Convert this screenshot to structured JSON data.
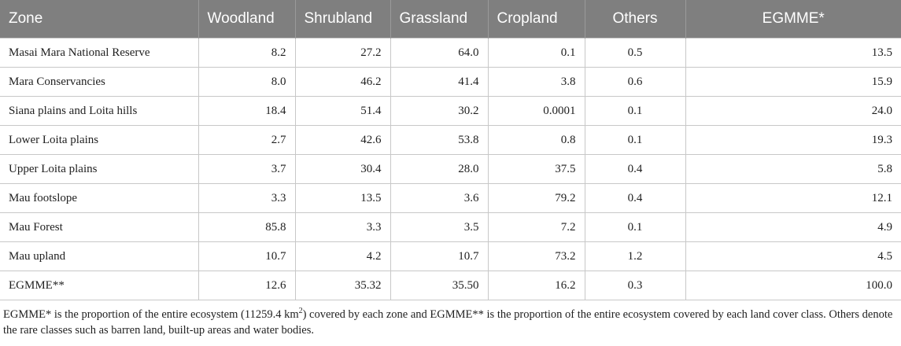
{
  "table": {
    "headers": [
      "Zone",
      "Woodland",
      "Shrubland",
      "Grassland",
      "Cropland",
      "Others",
      "EGMME*"
    ],
    "rows": [
      [
        "Masai Mara National Reserve",
        "8.2",
        "27.2",
        "64.0",
        "0.1",
        "0.5",
        "13.5"
      ],
      [
        "Mara Conservancies",
        "8.0",
        "46.2",
        "41.4",
        "3.8",
        "0.6",
        "15.9"
      ],
      [
        "Siana plains and Loita hills",
        "18.4",
        "51.4",
        "30.2",
        "0.0001",
        "0.1",
        "24.0"
      ],
      [
        "Lower Loita plains",
        "2.7",
        "42.6",
        "53.8",
        "0.8",
        "0.1",
        "19.3"
      ],
      [
        "Upper Loita plains",
        "3.7",
        "30.4",
        "28.0",
        "37.5",
        "0.4",
        "5.8"
      ],
      [
        "Mau footslope",
        "3.3",
        "13.5",
        "3.6",
        "79.2",
        "0.4",
        "12.1"
      ],
      [
        "Mau Forest",
        "85.8",
        "3.3",
        "3.5",
        "7.2",
        "0.1",
        "4.9"
      ],
      [
        "Mau upland",
        "10.7",
        "4.2",
        "10.7",
        "73.2",
        "1.2",
        "4.5"
      ],
      [
        "EGMME**",
        "12.6",
        "35.32",
        "35.50",
        "16.2",
        "0.3",
        "100.0"
      ]
    ]
  },
  "footnote": {
    "part1": "EGMME* is the proportion of the entire ecosystem (11259.4 km",
    "sup": "2",
    "part2": ") covered by each zone and EGMME** is the proportion of the entire ecosystem covered by each land cover class. Others denote the rare classes such as barren land, built-up areas and water bodies."
  }
}
